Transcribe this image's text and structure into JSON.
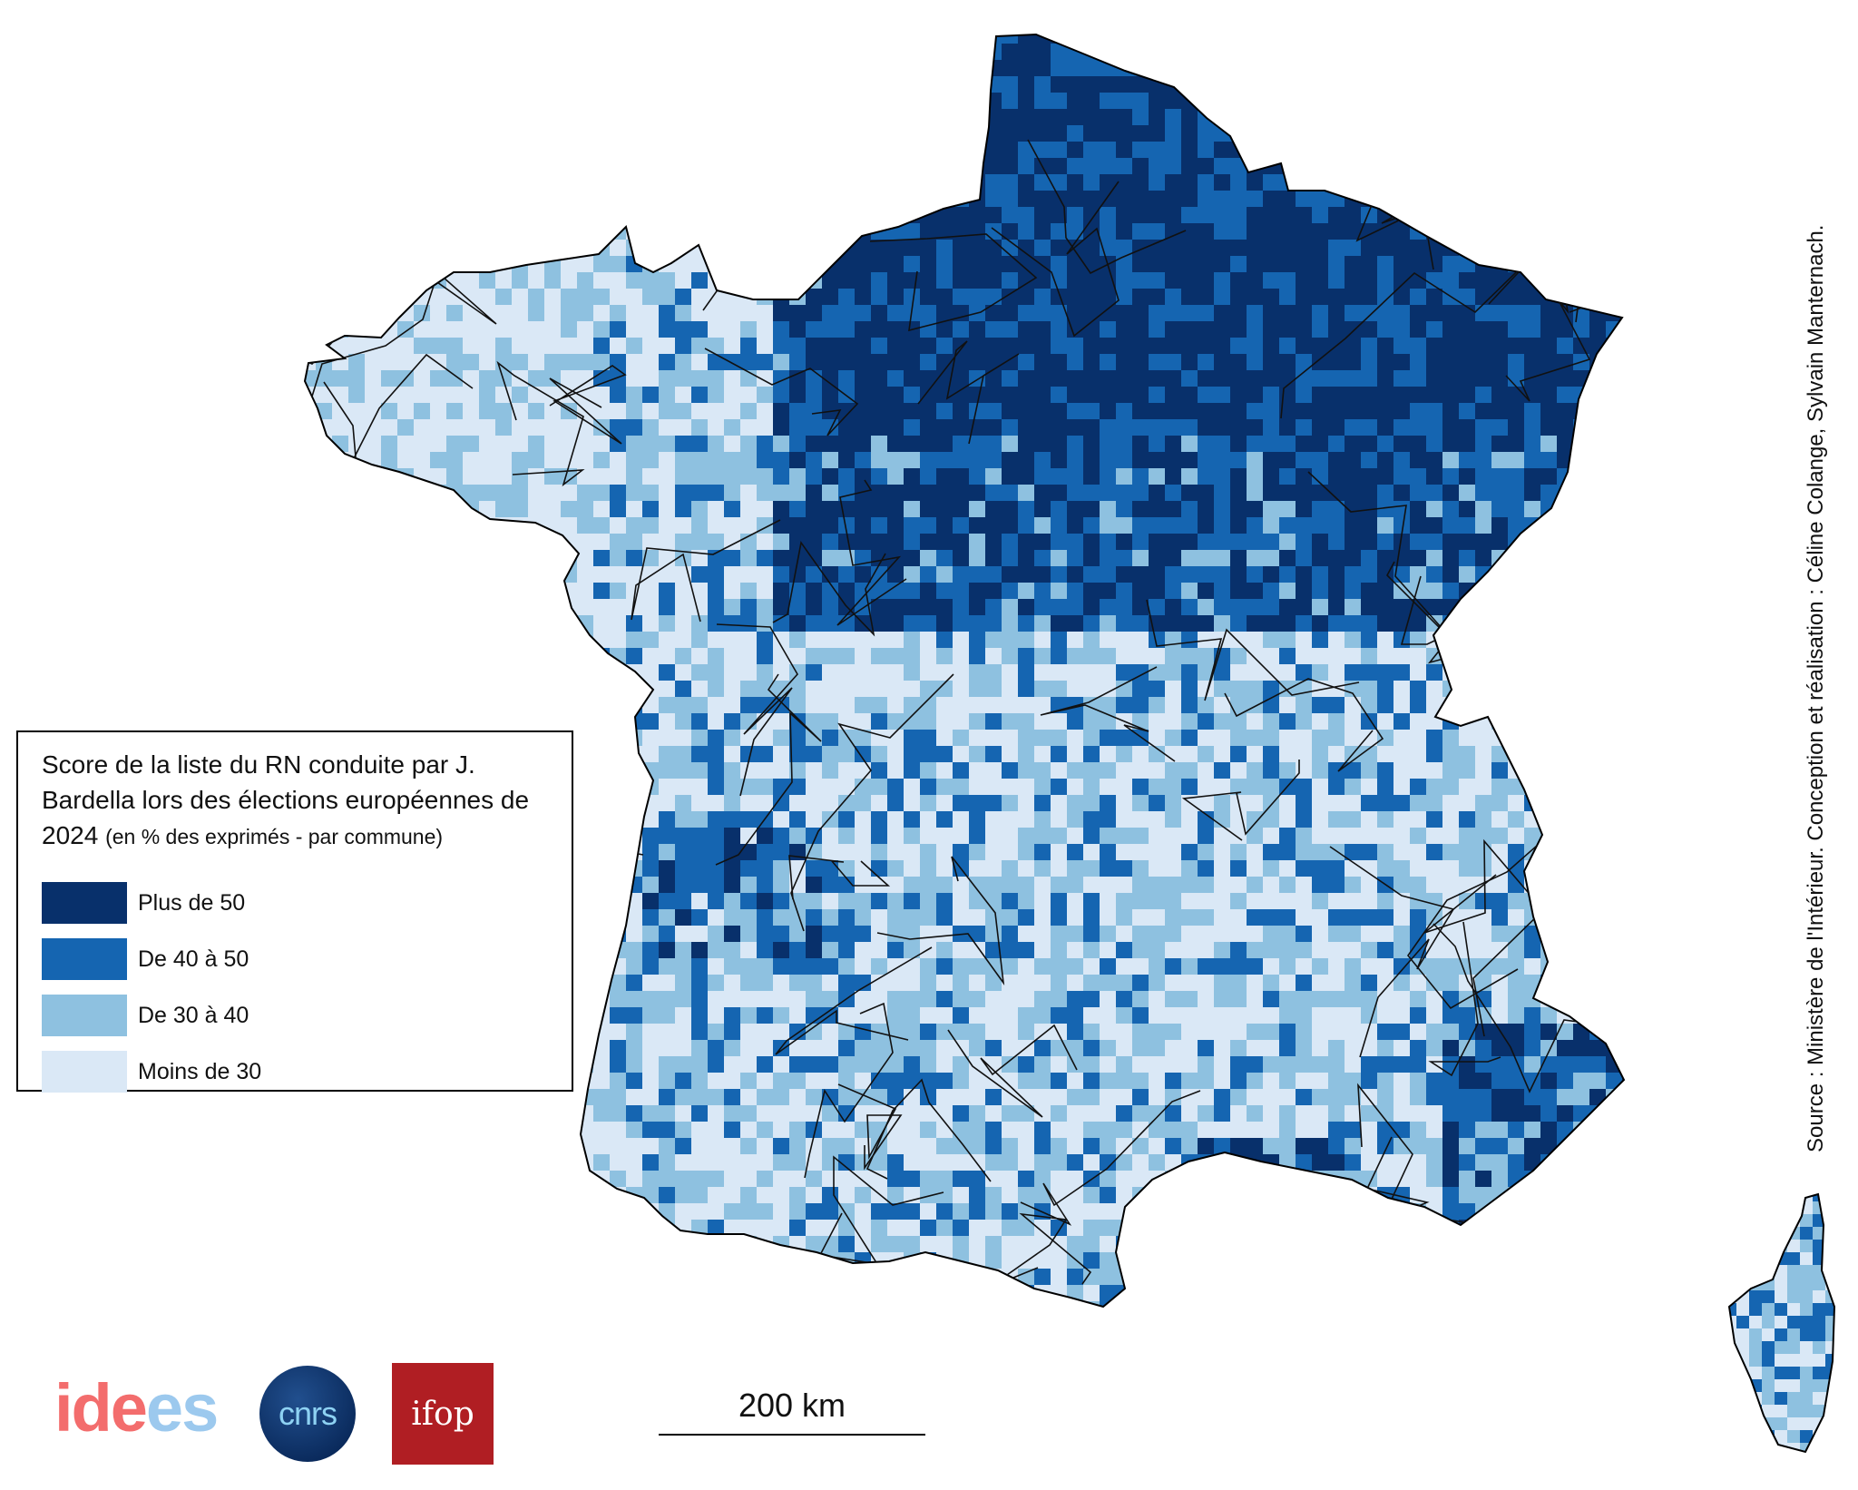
{
  "legend": {
    "title_main": "Score de la liste du RN conduite par J. Bardella lors des élections européennes de 2024",
    "title_note": "(en % des exprimés - par commune)",
    "items": [
      {
        "label": "Plus de 50",
        "color": "#08306b"
      },
      {
        "label": "De 40 à 50",
        "color": "#1565b1"
      },
      {
        "label": "De 30 à 40",
        "color": "#8ec1e0"
      },
      {
        "label": "Moins de 30",
        "color": "#dae8f6"
      }
    ]
  },
  "source": "Source : Ministère de l'Intérieur. Conception et réalisation : Céline Colange, Sylvain Manternach.",
  "scale": {
    "label": "200 km"
  },
  "logos": {
    "ides_a": "ide",
    "ides_b": "es",
    "cnrs": "cnrs",
    "ifop": "ifop"
  }
}
